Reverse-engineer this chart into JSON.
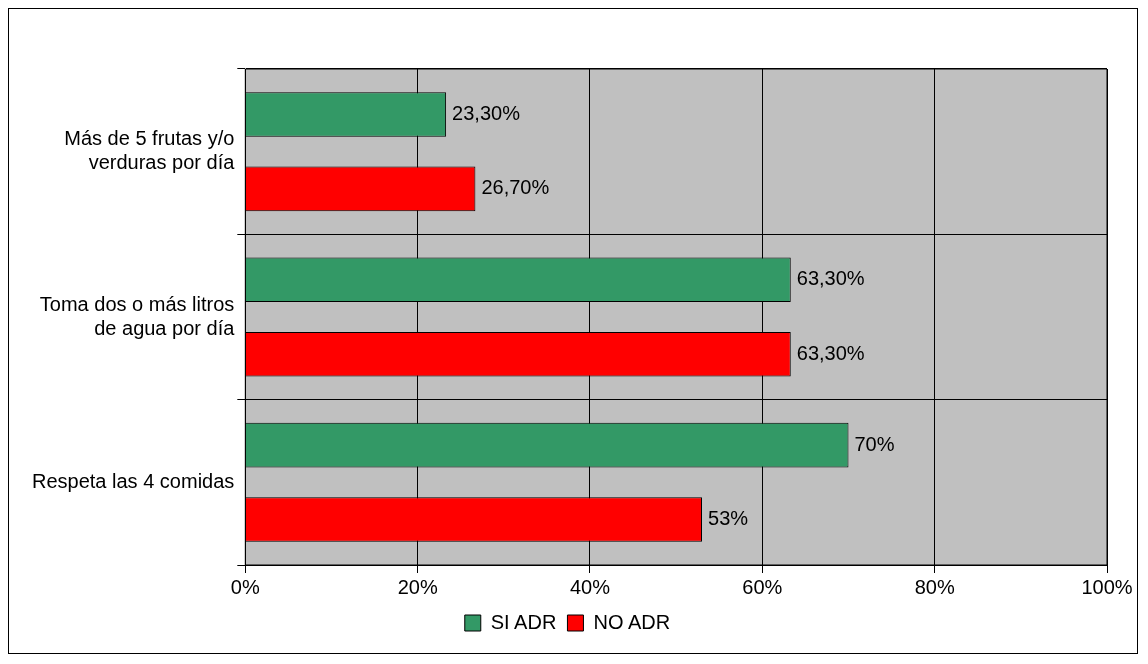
{
  "chart_data": {
    "type": "bar",
    "orientation": "horizontal",
    "categories": [
      "Más de 5 frutas y/o verduras por día",
      "Toma dos o más litros de agua por día",
      "Respeta las 4 comidas"
    ],
    "series": [
      {
        "name": "SI ADR",
        "color": "#339966",
        "values": [
          23.3,
          63.3,
          70
        ],
        "value_labels": [
          "23,30%",
          "63,30%",
          "70%"
        ]
      },
      {
        "name": "NO ADR",
        "color": "#ff0000",
        "values": [
          26.7,
          63.3,
          53
        ],
        "value_labels": [
          "26,70%",
          "63,30%",
          "53%"
        ]
      }
    ],
    "xlim": [
      0,
      100
    ],
    "xticks": [
      {
        "value": 0,
        "label": "0%"
      },
      {
        "value": 20,
        "label": "20%"
      },
      {
        "value": 40,
        "label": "40%"
      },
      {
        "value": 60,
        "label": "60%"
      },
      {
        "value": 80,
        "label": "80%"
      },
      {
        "value": 100,
        "label": "100%"
      }
    ],
    "grid": true,
    "legend": "bottom"
  }
}
